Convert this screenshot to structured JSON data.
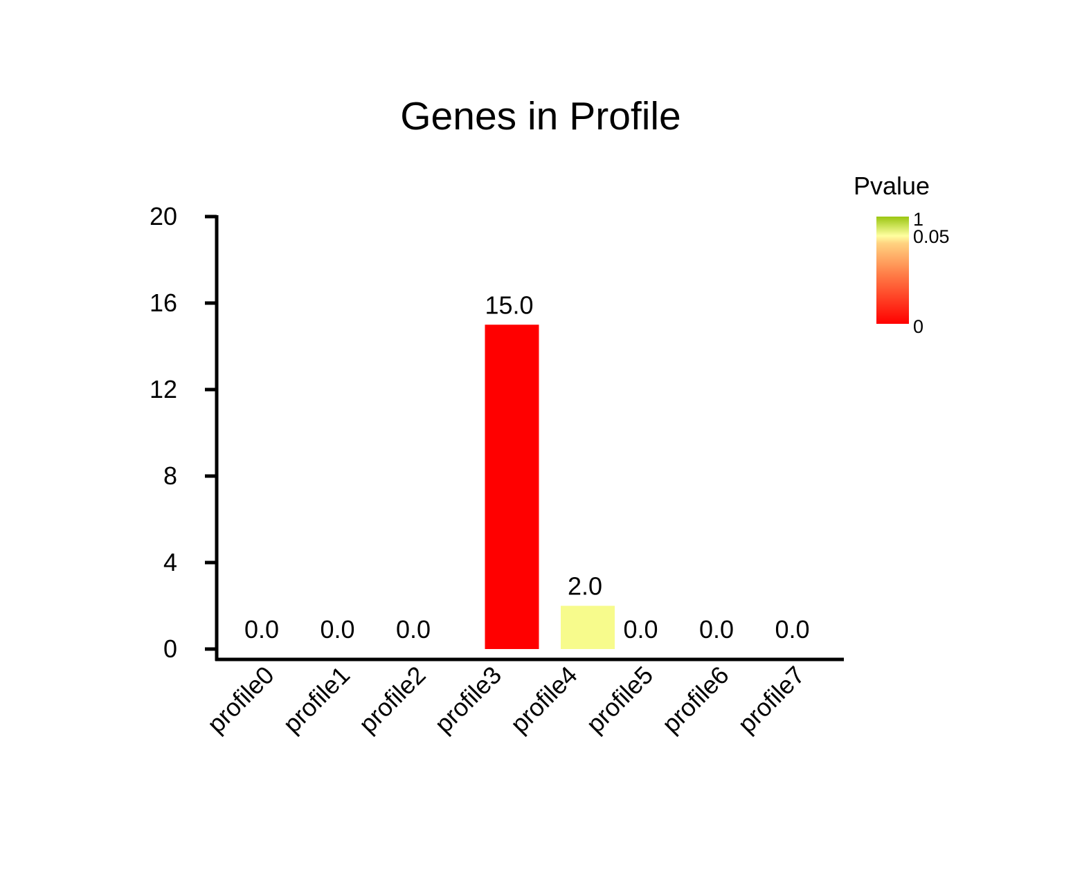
{
  "chart_data": {
    "type": "bar",
    "title": "Genes in Profile",
    "xlabel": "",
    "ylabel": "",
    "categories": [
      "profile0",
      "profile1",
      "profile2",
      "profile3",
      "profile4",
      "profile5",
      "profile6",
      "profile7"
    ],
    "values": [
      0,
      0,
      0,
      15,
      2,
      0,
      0,
      0
    ],
    "value_labels": [
      "0.0",
      "0.0",
      "0.0",
      "15.0",
      "2.0",
      "0.0",
      "0.0",
      "0.0"
    ],
    "bar_colors": [
      "#ff0000",
      "#ff0000",
      "#ff0000",
      "#ff0000",
      "#f7fb8c",
      "#ff0000",
      "#ff0000",
      "#ff0000"
    ],
    "ylim": [
      0,
      20
    ],
    "yticks": [
      0,
      4,
      8,
      12,
      16,
      20
    ],
    "ytick_labels": [
      "0",
      "4",
      "8",
      "12",
      "16",
      "20"
    ],
    "grid": false,
    "legend": {
      "title": "Pvalue",
      "placement": "top-right",
      "type": "colorbar",
      "tick_labels": [
        "1",
        "0.05",
        "0"
      ],
      "tick_values": [
        1,
        0.05,
        0
      ],
      "colors": {
        "high": "#9bc611",
        "mid": "#ffffa0",
        "upper_mid": "#ffd280",
        "lower_mid": "#ff7a45",
        "low": "#ff0000"
      }
    }
  }
}
